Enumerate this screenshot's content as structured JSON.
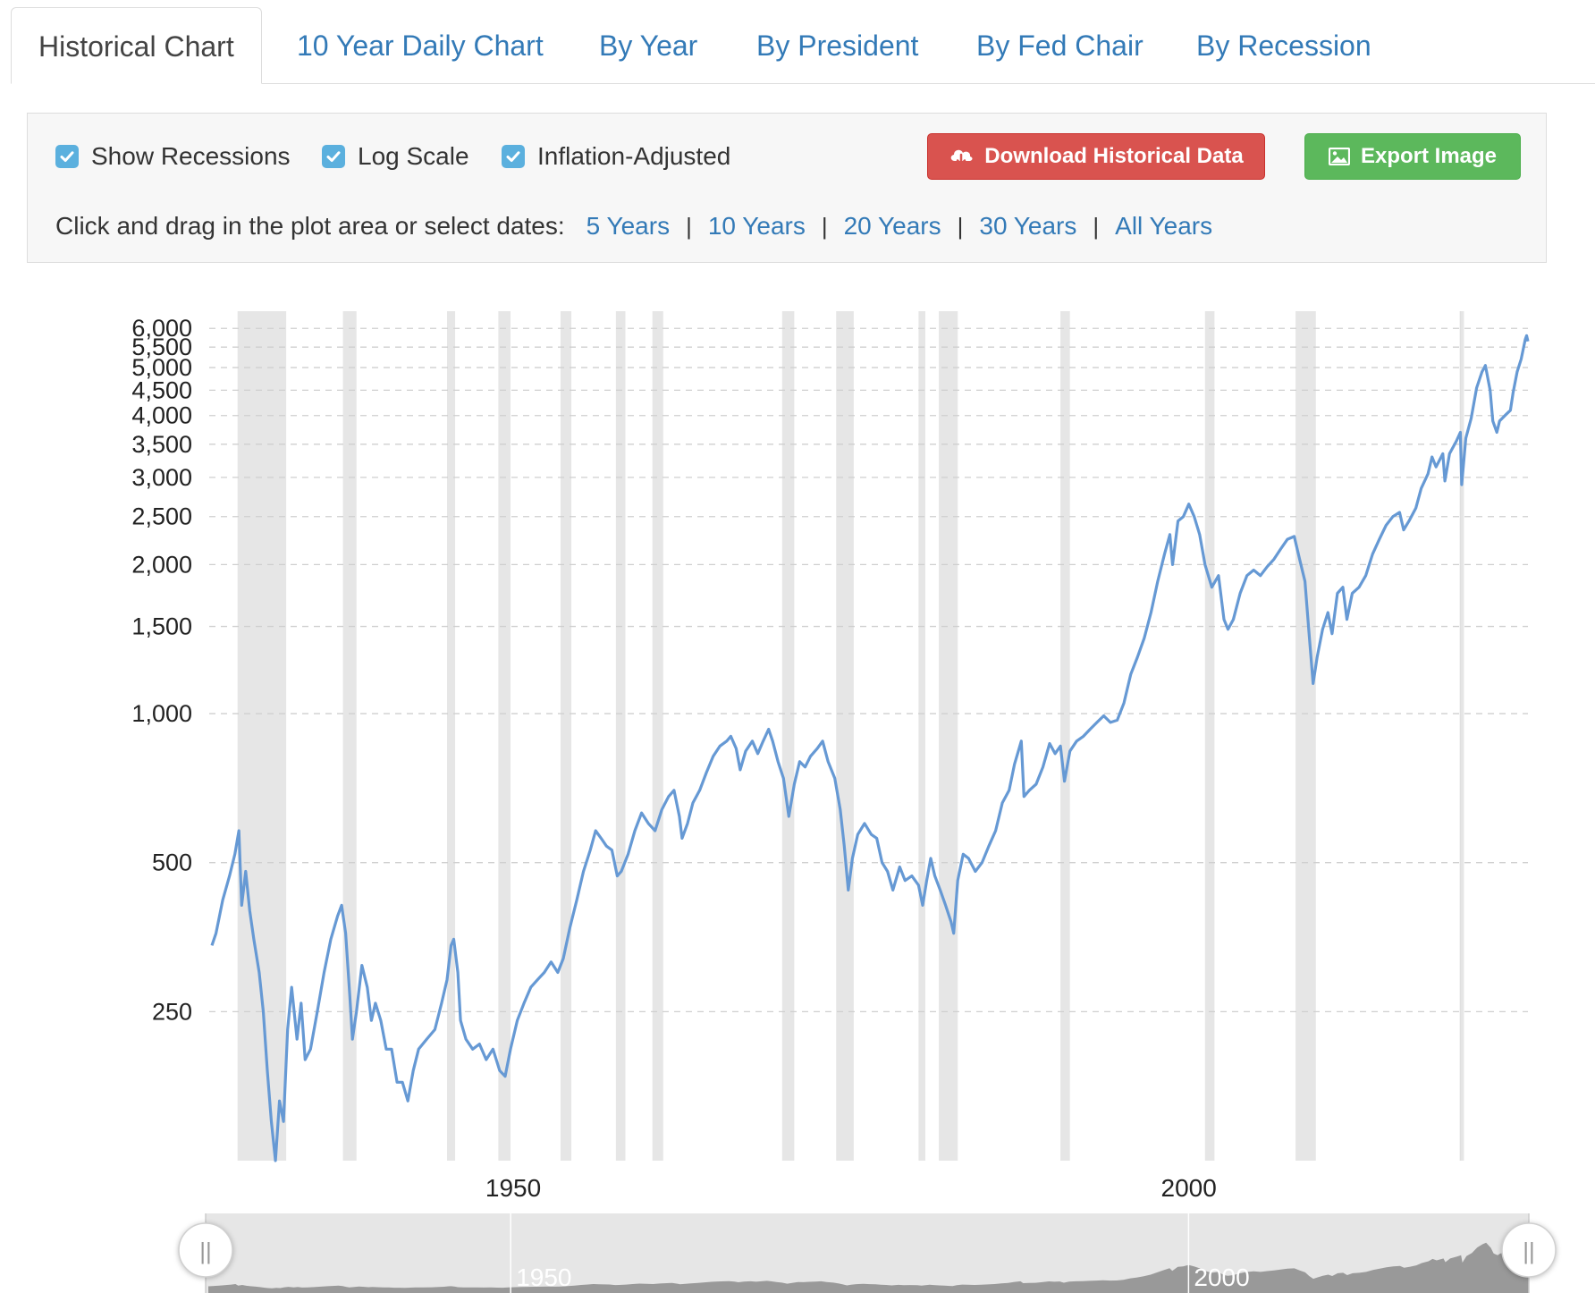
{
  "tabs": [
    {
      "label": "Historical Chart",
      "active": true
    },
    {
      "label": "10 Year Daily Chart"
    },
    {
      "label": "By Year"
    },
    {
      "label": "By President"
    },
    {
      "label": "By Fed Chair"
    },
    {
      "label": "By Recession"
    }
  ],
  "controls": {
    "show_recessions": {
      "label": "Show Recessions",
      "checked": true
    },
    "log_scale": {
      "label": "Log Scale",
      "checked": true
    },
    "inflation_adjusted": {
      "label": "Inflation-Adjusted",
      "checked": true
    },
    "download_label": "Download Historical Data",
    "download_icon": "cloud-download-icon",
    "export_label": "Export Image",
    "export_icon": "image-icon",
    "date_prompt": "Click and drag in the plot area or select dates:",
    "date_links": [
      "5 Years",
      "10 Years",
      "20 Years",
      "30 Years",
      "All Years"
    ],
    "colors": {
      "checkbox": "#5bb0de",
      "download": "#d9534f",
      "export": "#5cb85c",
      "link": "#337ab7",
      "series": "#6699d4",
      "recession": "#e6e6e6"
    }
  },
  "chart_data": {
    "type": "line",
    "title": "",
    "xlabel": "",
    "ylabel": "",
    "log_scale": true,
    "grid": true,
    "yticks": [
      250,
      500,
      1000,
      1500,
      2000,
      2500,
      3000,
      3500,
      4000,
      4500,
      5000,
      5500,
      6000
    ],
    "ytick_labels": [
      "250",
      "500",
      "1,000",
      "1,500",
      "2,000",
      "2,500",
      "3,000",
      "3,500",
      "4,000",
      "4,500",
      "5,000",
      "5,500",
      "6,000"
    ],
    "xticks": [
      1950,
      2000
    ],
    "ylim": [
      125,
      6500
    ],
    "xlim": [
      1927.5,
      2025.1
    ],
    "recessions": [
      [
        1929.6,
        1933.2
      ],
      [
        1937.4,
        1938.4
      ],
      [
        1945.1,
        1945.7
      ],
      [
        1948.9,
        1949.8
      ],
      [
        1953.5,
        1954.3
      ],
      [
        1957.6,
        1958.3
      ],
      [
        1960.3,
        1961.1
      ],
      [
        1969.9,
        1970.8
      ],
      [
        1973.9,
        1975.2
      ],
      [
        1980.0,
        1980.5
      ],
      [
        1981.5,
        1982.9
      ],
      [
        1990.5,
        1991.2
      ],
      [
        2001.2,
        2001.9
      ],
      [
        2007.9,
        2009.4
      ],
      [
        2020.1,
        2020.3
      ]
    ],
    "series": [
      {
        "values": [
          [
            1927.7,
            340
          ],
          [
            1928.0,
            360
          ],
          [
            1928.5,
            420
          ],
          [
            1929.0,
            470
          ],
          [
            1929.4,
            520
          ],
          [
            1929.7,
            580
          ],
          [
            1929.9,
            410
          ],
          [
            1930.2,
            480
          ],
          [
            1930.5,
            400
          ],
          [
            1930.8,
            350
          ],
          [
            1931.2,
            300
          ],
          [
            1931.5,
            250
          ],
          [
            1931.8,
            190
          ],
          [
            1932.1,
            150
          ],
          [
            1932.4,
            125
          ],
          [
            1932.7,
            165
          ],
          [
            1933.0,
            150
          ],
          [
            1933.3,
            230
          ],
          [
            1933.6,
            280
          ],
          [
            1934.0,
            220
          ],
          [
            1934.3,
            260
          ],
          [
            1934.6,
            200
          ],
          [
            1935.0,
            210
          ],
          [
            1935.5,
            250
          ],
          [
            1936.0,
            300
          ],
          [
            1936.5,
            350
          ],
          [
            1937.0,
            390
          ],
          [
            1937.3,
            410
          ],
          [
            1937.6,
            360
          ],
          [
            1937.9,
            270
          ],
          [
            1938.1,
            220
          ],
          [
            1938.4,
            250
          ],
          [
            1938.8,
            310
          ],
          [
            1939.2,
            280
          ],
          [
            1939.5,
            240
          ],
          [
            1939.8,
            260
          ],
          [
            1940.2,
            240
          ],
          [
            1940.6,
            210
          ],
          [
            1941.0,
            210
          ],
          [
            1941.4,
            180
          ],
          [
            1941.8,
            180
          ],
          [
            1942.2,
            165
          ],
          [
            1942.6,
            190
          ],
          [
            1943.0,
            210
          ],
          [
            1943.6,
            220
          ],
          [
            1944.2,
            230
          ],
          [
            1944.7,
            260
          ],
          [
            1945.1,
            290
          ],
          [
            1945.4,
            340
          ],
          [
            1945.6,
            350
          ],
          [
            1945.9,
            300
          ],
          [
            1946.1,
            240
          ],
          [
            1946.5,
            220
          ],
          [
            1947.0,
            210
          ],
          [
            1947.5,
            215
          ],
          [
            1948.0,
            200
          ],
          [
            1948.5,
            210
          ],
          [
            1949.0,
            190
          ],
          [
            1949.4,
            185
          ],
          [
            1949.8,
            210
          ],
          [
            1950.3,
            240
          ],
          [
            1950.8,
            260
          ],
          [
            1951.3,
            280
          ],
          [
            1951.8,
            290
          ],
          [
            1952.3,
            300
          ],
          [
            1952.8,
            315
          ],
          [
            1953.3,
            300
          ],
          [
            1953.7,
            320
          ],
          [
            1954.2,
            370
          ],
          [
            1954.7,
            420
          ],
          [
            1955.2,
            480
          ],
          [
            1955.7,
            530
          ],
          [
            1956.1,
            580
          ],
          [
            1956.5,
            560
          ],
          [
            1956.9,
            540
          ],
          [
            1957.3,
            530
          ],
          [
            1957.7,
            470
          ],
          [
            1958.0,
            480
          ],
          [
            1958.5,
            520
          ],
          [
            1959.0,
            580
          ],
          [
            1959.5,
            630
          ],
          [
            1960.0,
            600
          ],
          [
            1960.5,
            580
          ],
          [
            1961.0,
            640
          ],
          [
            1961.5,
            680
          ],
          [
            1961.9,
            700
          ],
          [
            1962.3,
            620
          ],
          [
            1962.5,
            560
          ],
          [
            1962.9,
            600
          ],
          [
            1963.3,
            660
          ],
          [
            1963.8,
            700
          ],
          [
            1964.3,
            760
          ],
          [
            1964.8,
            820
          ],
          [
            1965.3,
            860
          ],
          [
            1965.8,
            880
          ],
          [
            1966.1,
            900
          ],
          [
            1966.5,
            850
          ],
          [
            1966.8,
            770
          ],
          [
            1967.2,
            840
          ],
          [
            1967.7,
            880
          ],
          [
            1968.1,
            830
          ],
          [
            1968.5,
            880
          ],
          [
            1968.9,
            930
          ],
          [
            1969.2,
            880
          ],
          [
            1969.6,
            800
          ],
          [
            1970.0,
            740
          ],
          [
            1970.4,
            620
          ],
          [
            1970.8,
            720
          ],
          [
            1971.2,
            800
          ],
          [
            1971.6,
            780
          ],
          [
            1972.0,
            820
          ],
          [
            1972.5,
            850
          ],
          [
            1972.9,
            880
          ],
          [
            1973.3,
            800
          ],
          [
            1973.8,
            740
          ],
          [
            1974.2,
            640
          ],
          [
            1974.5,
            540
          ],
          [
            1974.8,
            440
          ],
          [
            1975.1,
            510
          ],
          [
            1975.5,
            570
          ],
          [
            1976.0,
            600
          ],
          [
            1976.5,
            570
          ],
          [
            1976.9,
            560
          ],
          [
            1977.3,
            500
          ],
          [
            1977.7,
            480
          ],
          [
            1978.1,
            440
          ],
          [
            1978.6,
            490
          ],
          [
            1979.0,
            460
          ],
          [
            1979.5,
            470
          ],
          [
            1980.0,
            450
          ],
          [
            1980.3,
            410
          ],
          [
            1980.6,
            460
          ],
          [
            1980.9,
            510
          ],
          [
            1981.2,
            470
          ],
          [
            1981.6,
            440
          ],
          [
            1982.0,
            410
          ],
          [
            1982.4,
            380
          ],
          [
            1982.6,
            360
          ],
          [
            1982.9,
            460
          ],
          [
            1983.3,
            520
          ],
          [
            1983.7,
            510
          ],
          [
            1984.2,
            480
          ],
          [
            1984.7,
            500
          ],
          [
            1985.2,
            540
          ],
          [
            1985.7,
            580
          ],
          [
            1986.2,
            660
          ],
          [
            1986.7,
            700
          ],
          [
            1987.1,
            790
          ],
          [
            1987.6,
            880
          ],
          [
            1987.8,
            680
          ],
          [
            1988.2,
            700
          ],
          [
            1988.7,
            720
          ],
          [
            1989.2,
            780
          ],
          [
            1989.7,
            870
          ],
          [
            1990.1,
            830
          ],
          [
            1990.5,
            860
          ],
          [
            1990.8,
            730
          ],
          [
            1991.2,
            840
          ],
          [
            1991.7,
            880
          ],
          [
            1992.2,
            900
          ],
          [
            1992.7,
            930
          ],
          [
            1993.2,
            960
          ],
          [
            1993.7,
            990
          ],
          [
            1994.2,
            960
          ],
          [
            1994.7,
            970
          ],
          [
            1995.2,
            1050
          ],
          [
            1995.7,
            1200
          ],
          [
            1996.2,
            1300
          ],
          [
            1996.7,
            1420
          ],
          [
            1997.2,
            1600
          ],
          [
            1997.7,
            1850
          ],
          [
            1998.2,
            2100
          ],
          [
            1998.6,
            2300
          ],
          [
            1998.8,
            2000
          ],
          [
            1999.2,
            2450
          ],
          [
            1999.6,
            2500
          ],
          [
            2000.0,
            2650
          ],
          [
            2000.4,
            2500
          ],
          [
            2000.8,
            2300
          ],
          [
            2001.2,
            2000
          ],
          [
            2001.7,
            1800
          ],
          [
            2002.2,
            1900
          ],
          [
            2002.6,
            1550
          ],
          [
            2002.9,
            1480
          ],
          [
            2003.3,
            1550
          ],
          [
            2003.8,
            1750
          ],
          [
            2004.3,
            1900
          ],
          [
            2004.8,
            1950
          ],
          [
            2005.3,
            1900
          ],
          [
            2005.8,
            1980
          ],
          [
            2006.3,
            2050
          ],
          [
            2006.8,
            2150
          ],
          [
            2007.3,
            2250
          ],
          [
            2007.8,
            2280
          ],
          [
            2008.2,
            2050
          ],
          [
            2008.6,
            1850
          ],
          [
            2008.9,
            1450
          ],
          [
            2009.2,
            1150
          ],
          [
            2009.5,
            1300
          ],
          [
            2009.9,
            1480
          ],
          [
            2010.3,
            1600
          ],
          [
            2010.6,
            1450
          ],
          [
            2011.0,
            1750
          ],
          [
            2011.4,
            1800
          ],
          [
            2011.7,
            1550
          ],
          [
            2012.1,
            1750
          ],
          [
            2012.6,
            1800
          ],
          [
            2013.1,
            1900
          ],
          [
            2013.6,
            2100
          ],
          [
            2014.1,
            2250
          ],
          [
            2014.6,
            2400
          ],
          [
            2015.1,
            2500
          ],
          [
            2015.6,
            2550
          ],
          [
            2015.9,
            2350
          ],
          [
            2016.3,
            2450
          ],
          [
            2016.8,
            2600
          ],
          [
            2017.2,
            2850
          ],
          [
            2017.7,
            3050
          ],
          [
            2018.0,
            3300
          ],
          [
            2018.3,
            3150
          ],
          [
            2018.8,
            3350
          ],
          [
            2018.95,
            2950
          ],
          [
            2019.3,
            3350
          ],
          [
            2019.8,
            3550
          ],
          [
            2020.1,
            3700
          ],
          [
            2020.2,
            2900
          ],
          [
            2020.5,
            3600
          ],
          [
            2020.9,
            3950
          ],
          [
            2021.3,
            4550
          ],
          [
            2021.7,
            4900
          ],
          [
            2021.95,
            5050
          ],
          [
            2022.3,
            4500
          ],
          [
            2022.5,
            3900
          ],
          [
            2022.8,
            3700
          ],
          [
            2023.0,
            3900
          ],
          [
            2023.4,
            4000
          ],
          [
            2023.8,
            4100
          ],
          [
            2024.0,
            4450
          ],
          [
            2024.3,
            4900
          ],
          [
            2024.6,
            5200
          ],
          [
            2024.9,
            5700
          ],
          [
            2025.0,
            5800
          ],
          [
            2025.1,
            5650
          ]
        ]
      }
    ],
    "navigator": {
      "labels": [
        "1950",
        "2000"
      ],
      "handles": [
        "||",
        "||"
      ]
    }
  }
}
